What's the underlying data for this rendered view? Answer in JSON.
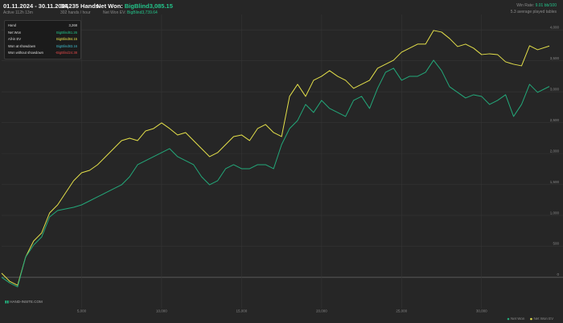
{
  "header": {
    "period": "01.11.2024 - 30.11.2024",
    "active": "Active 112h 13m",
    "hands": "34,235 Hands",
    "hands_per_hour": "302 hands / hour",
    "net_won_label": "Net Won:",
    "net_won_value": "BigBlind3,085.15",
    "net_won_ev_label": "Net Won EV:",
    "net_won_ev_value": "BigBlind3,739.64",
    "win_rate_label": "Win Rate:",
    "win_rate_value": "9.01 bb/100",
    "tables": "5.3 average played tables"
  },
  "tooltip": {
    "rows": [
      [
        "Hand",
        "3,268"
      ],
      [
        "Net Won",
        "BigBlind61.26"
      ],
      [
        "All-in EV",
        "BigBlind84.15"
      ],
      [
        "Won at showdown",
        "BigBlind83.16"
      ],
      [
        "Won without showdown",
        "-BigBlind24.38"
      ]
    ]
  },
  "logo": "HAND-INSITE.COM",
  "chart_data": {
    "type": "line",
    "x": [
      0,
      500,
      1000,
      1500,
      2000,
      2500,
      3000,
      3500,
      4000,
      4500,
      5000,
      5500,
      6000,
      6500,
      7000,
      7500,
      8000,
      8500,
      9000,
      9500,
      10000,
      10500,
      11000,
      11500,
      12000,
      12500,
      13000,
      13500,
      14000,
      14500,
      15000,
      15500,
      16000,
      16500,
      17000,
      17500,
      18000,
      18500,
      19000,
      19500,
      20000,
      20500,
      21000,
      21500,
      22000,
      22500,
      23000,
      23500,
      24000,
      24500,
      25000,
      25500,
      26000,
      26500,
      27000,
      27500,
      28000,
      28500,
      29000,
      29500,
      30000,
      30500,
      31000,
      31500,
      32000,
      32500,
      33000,
      33500,
      34235
    ],
    "series": [
      {
        "name": "Net Won",
        "color": "#23a97a",
        "values": [
          0,
          -91,
          -156,
          325,
          520,
          650,
          975,
          1079,
          1105,
          1131,
          1170,
          1235,
          1300,
          1365,
          1430,
          1495,
          1625,
          1820,
          1885,
          1950,
          2015,
          2080,
          1950,
          1885,
          1820,
          1625,
          1495,
          1560,
          1755,
          1820,
          1755,
          1755,
          1820,
          1820,
          1755,
          2145,
          2405,
          2535,
          2795,
          2665,
          2860,
          2730,
          2665,
          2600,
          2860,
          2925,
          2730,
          3055,
          3315,
          3380,
          3185,
          3250,
          3250,
          3315,
          3510,
          3341,
          3081,
          2990,
          2899,
          2951,
          2925,
          2795,
          2860,
          2951,
          2600,
          2795,
          3120,
          2990,
          3085.15
        ]
      },
      {
        "name": "Net Won EV",
        "color": "#e4e04a",
        "values": [
          65,
          -65,
          -130,
          325,
          585,
          715,
          1040,
          1170,
          1365,
          1560,
          1690,
          1729,
          1820,
          1950,
          2080,
          2210,
          2249,
          2210,
          2366,
          2405,
          2496,
          2405,
          2301,
          2340,
          2210,
          2080,
          1950,
          2015,
          2145,
          2275,
          2301,
          2210,
          2405,
          2470,
          2340,
          2275,
          2925,
          3120,
          2925,
          3185,
          3250,
          3341,
          3250,
          3185,
          3055,
          3120,
          3185,
          3380,
          3445,
          3510,
          3640,
          3705,
          3770,
          3770,
          3991,
          3965,
          3861,
          3731,
          3770,
          3705,
          3601,
          3614,
          3601,
          3484,
          3445,
          3419,
          3744,
          3679,
          3739.64
        ]
      }
    ],
    "xlim": [
      0,
      34235
    ],
    "xticks": [
      {
        "value": 5000,
        "label": "5,000"
      },
      {
        "value": 10000,
        "label": "10,000"
      },
      {
        "value": 15000,
        "label": "15,000"
      },
      {
        "value": 20000,
        "label": "20,000"
      },
      {
        "value": 25000,
        "label": "25,000"
      },
      {
        "value": 30000,
        "label": "30,000"
      }
    ],
    "ylim": [
      -500,
      4250
    ],
    "yticks": [
      0,
      500,
      {
        "value": 1000,
        "label": "1,000"
      },
      {
        "value": 1500,
        "label": "1,500"
      },
      {
        "value": 2000,
        "label": "2,000"
      },
      {
        "value": 2500,
        "label": "2,500"
      },
      {
        "value": 3000,
        "label": "3,000"
      },
      {
        "value": 3500,
        "label": "3,500"
      },
      {
        "value": 4000,
        "label": "4,000"
      }
    ],
    "grid": true,
    "legend": "bottom-right"
  }
}
